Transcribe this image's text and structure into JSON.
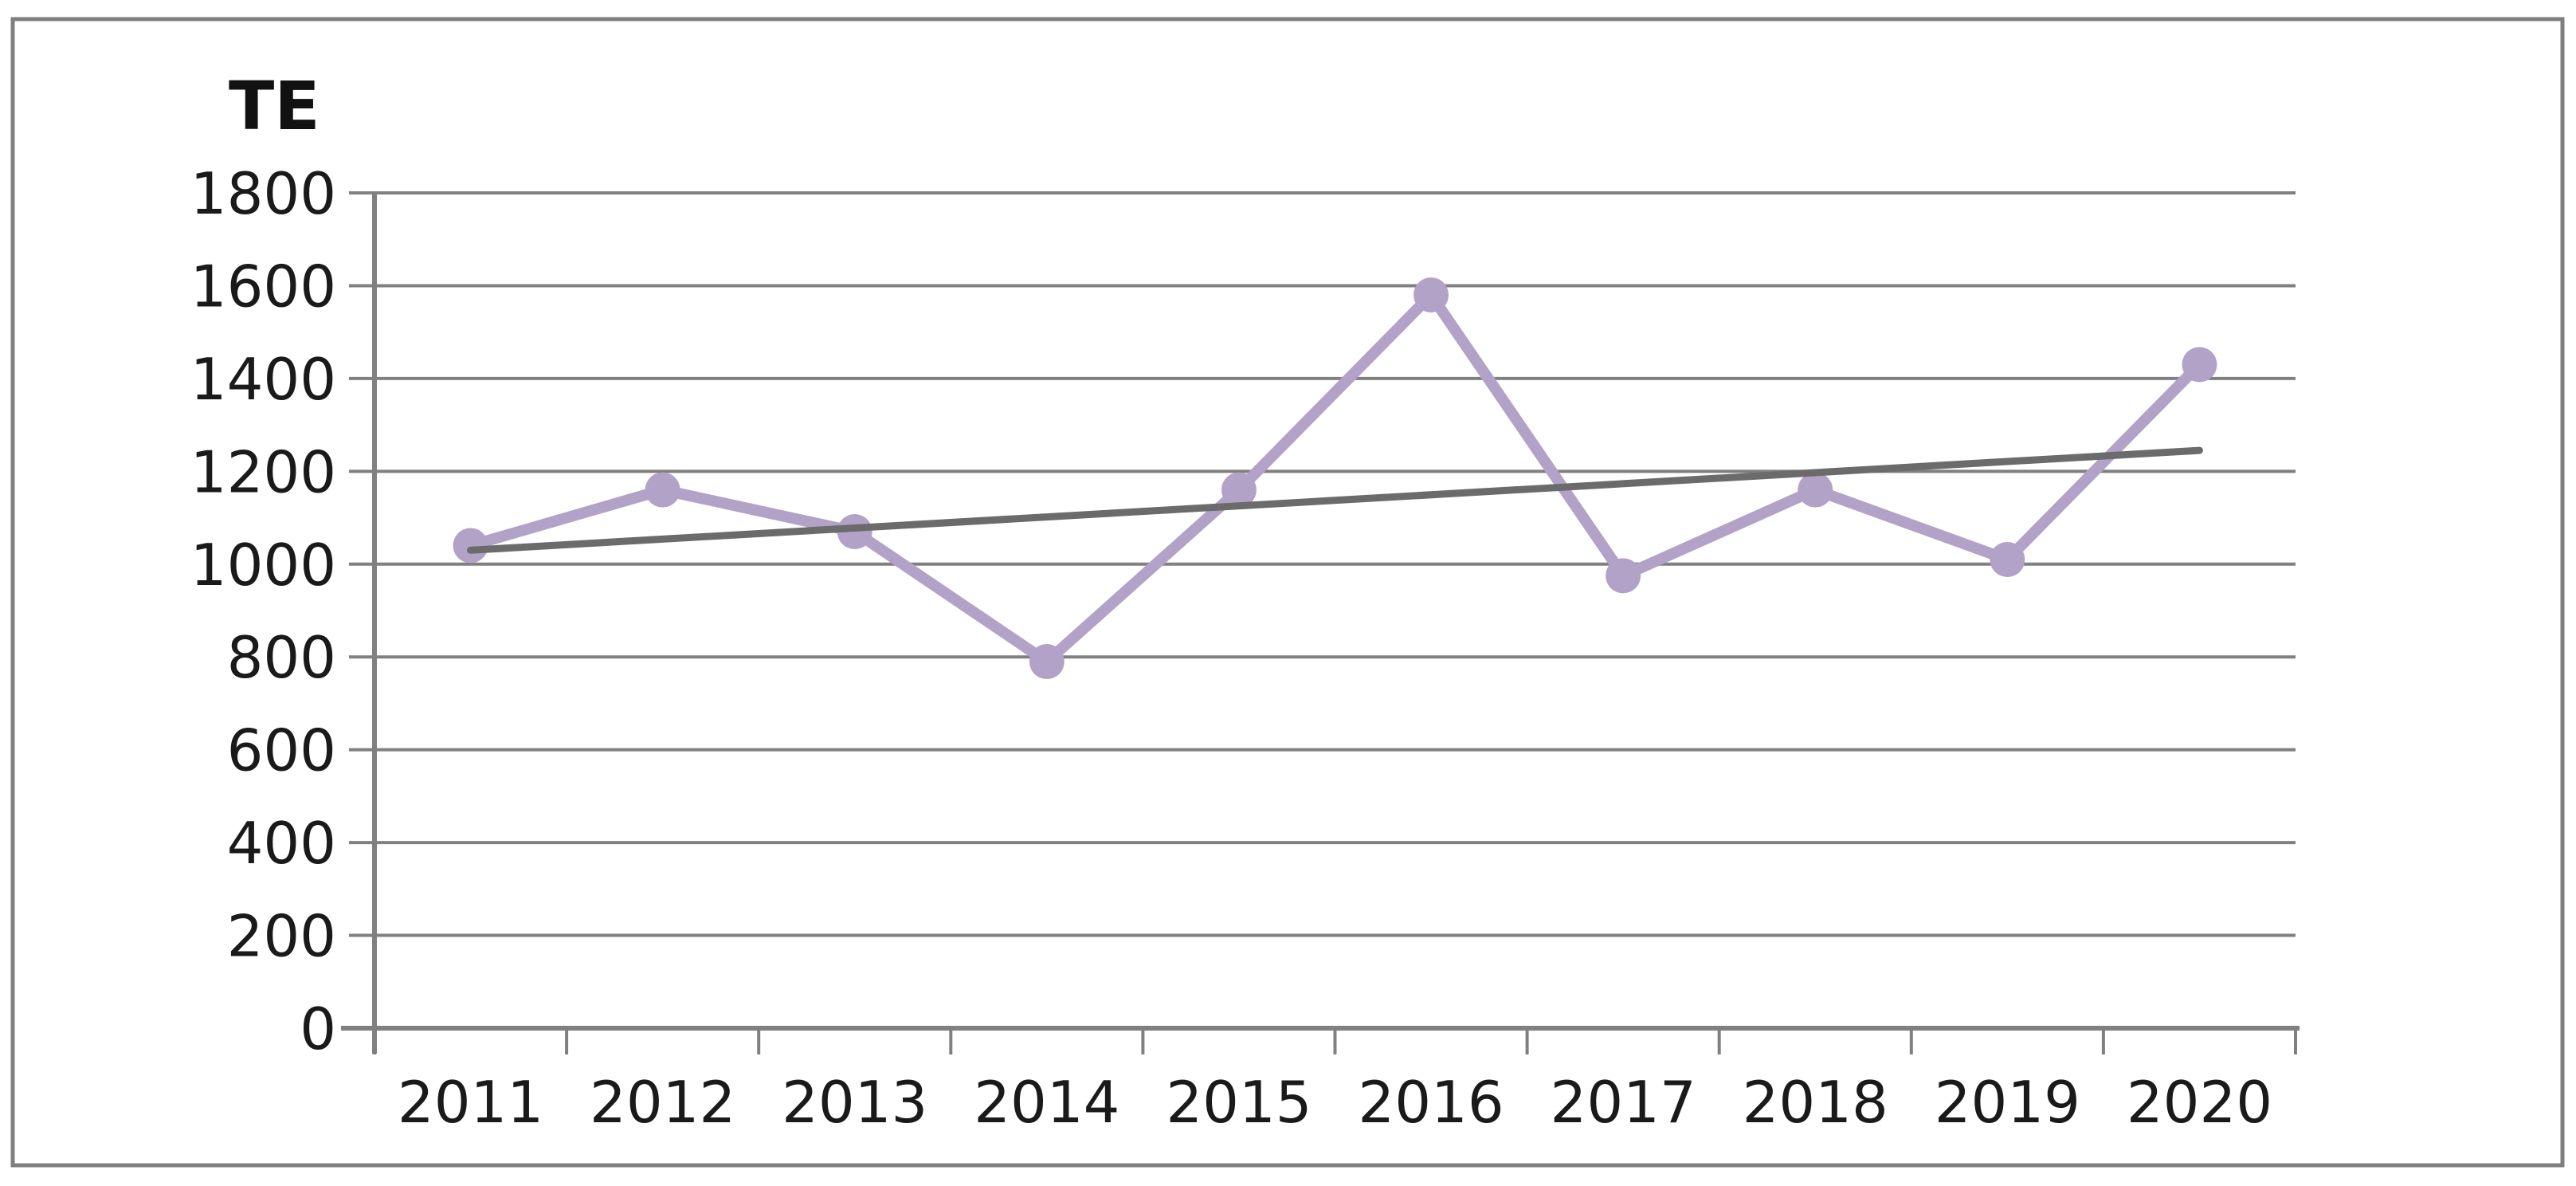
{
  "figure": {
    "background": "#ffffff",
    "border_color": "#7f7f7f"
  },
  "chart_data": {
    "type": "line",
    "title": "",
    "ylabel": "TE",
    "xlabel": "",
    "categories": [
      "2011",
      "2012",
      "2013",
      "2014",
      "2015",
      "2016",
      "2017",
      "2018",
      "2019",
      "2020"
    ],
    "series": [
      {
        "name": "TE",
        "values": [
          1040,
          1160,
          1070,
          790,
          1160,
          1580,
          975,
          1160,
          1010,
          1430
        ],
        "color": "#b3a2c7",
        "marker": "circle"
      }
    ],
    "trendline": {
      "name": "linear-trend",
      "start_value": 1030,
      "end_value": 1245,
      "color": "#6b6b6b"
    },
    "ylim": [
      0,
      1800
    ],
    "ytick_step": 200,
    "ytick_labels": [
      "0",
      "200",
      "400",
      "600",
      "800",
      "1000",
      "1200",
      "1400",
      "1600",
      "1800"
    ],
    "grid": "horizontal",
    "legend": "none",
    "colors": {
      "gridline": "#808080",
      "axis": "#808080",
      "tick": "#808080",
      "text": "#1a1a1a"
    }
  }
}
